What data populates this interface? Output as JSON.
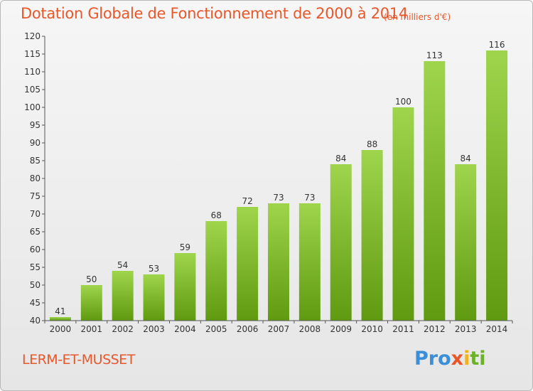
{
  "header": {
    "title": "Dotation Globale de Fonctionnement de 2000 à 2014",
    "subtitle": "(en milliers d'€)"
  },
  "footer": {
    "commune": "LERM-ET-MUSSET",
    "logo": {
      "p1": "Pro",
      "p2": "x",
      "p3": "i",
      "p4": "ti"
    }
  },
  "colors": {
    "bar_light": "#9ed54c",
    "bar_dark": "#5f9a10",
    "title": "#e8572a"
  },
  "chart_data": {
    "type": "bar",
    "title": "Dotation Globale de Fonctionnement de 2000 à 2014",
    "subtitle": "(en milliers d'€)",
    "categories": [
      "2000",
      "2001",
      "2002",
      "2003",
      "2004",
      "2005",
      "2006",
      "2007",
      "2008",
      "2009",
      "2010",
      "2011",
      "2012",
      "2013",
      "2014"
    ],
    "values": [
      41,
      50,
      54,
      53,
      59,
      68,
      72,
      73,
      73,
      84,
      88,
      100,
      113,
      84,
      116
    ],
    "xlabel": "",
    "ylabel": "",
    "ylim": [
      40,
      120
    ],
    "yticks": [
      40,
      45,
      50,
      55,
      60,
      65,
      70,
      75,
      80,
      85,
      90,
      95,
      100,
      105,
      110,
      115,
      120
    ],
    "grid": false,
    "data_labels": true
  }
}
